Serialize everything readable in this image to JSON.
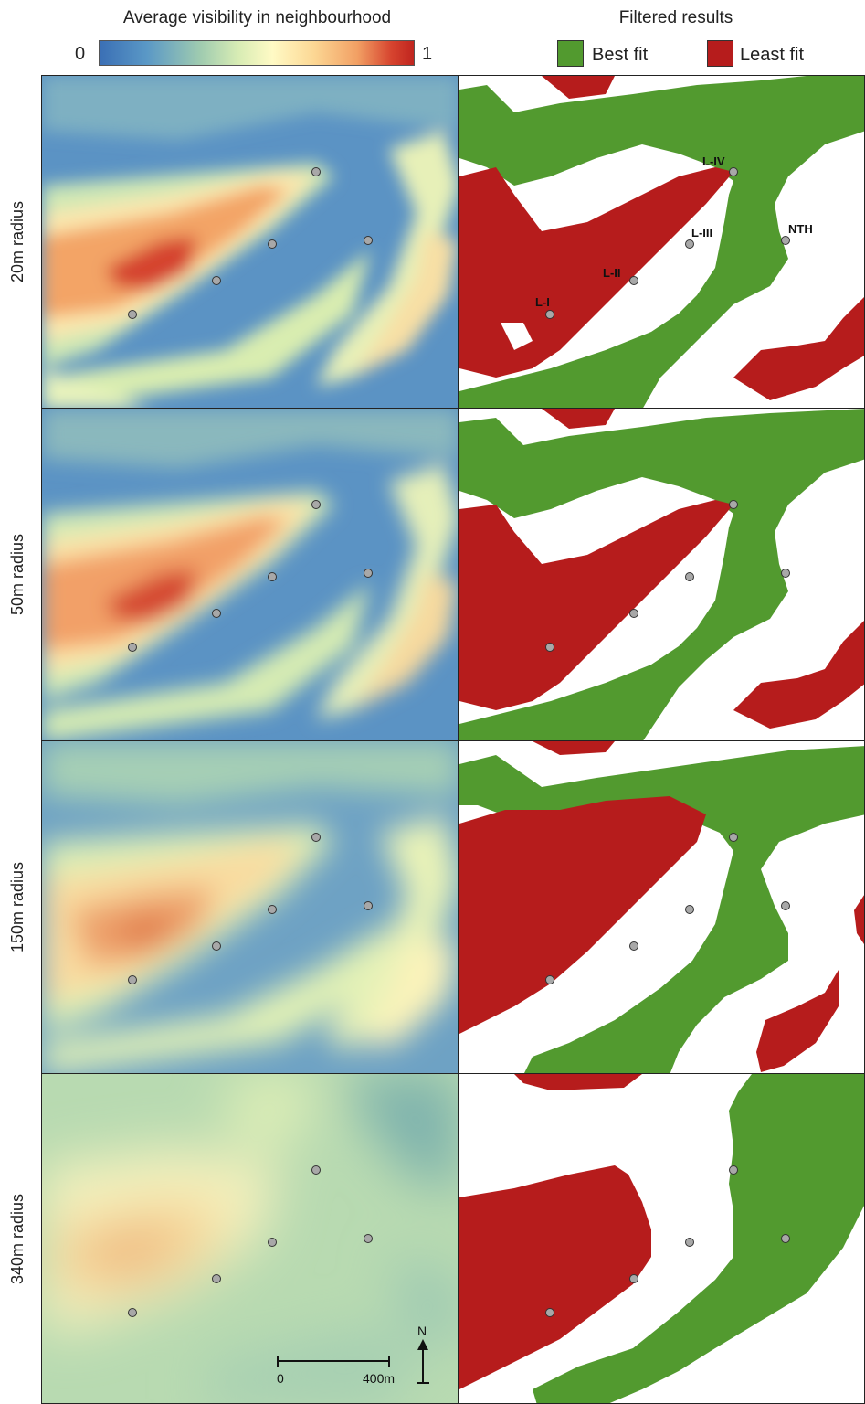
{
  "legend": {
    "visibility_title": "Average visibility in neighbourhood",
    "scale_min": "0",
    "scale_max": "1",
    "filter_title": "Filtered results",
    "best_fit_label": "Best fit",
    "least_fit_label": "Least fit",
    "colors": {
      "low": "#3a6fb5",
      "mid": "#fffac5",
      "high": "#c0251f",
      "best_fit": "#529a2f",
      "least_fit": "#b61c1c"
    }
  },
  "rows": [
    {
      "label": "20m radius"
    },
    {
      "label": "50m radius"
    },
    {
      "label": "150m radius"
    },
    {
      "label": "340m radius"
    }
  ],
  "site_labels": [
    "L-I",
    "L-II",
    "L-III",
    "L-IV",
    "NTH"
  ],
  "scale_bar": {
    "start": "0",
    "end": "400m",
    "north": "N"
  }
}
